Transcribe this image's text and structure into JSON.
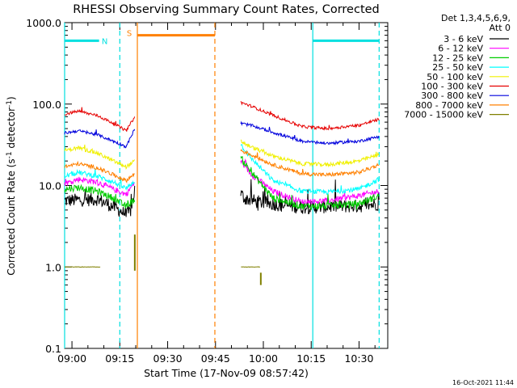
{
  "chart_data": {
    "type": "line",
    "title": "RHESSI Observing Summary Count Rates, Corrected",
    "xlabel": "Start Time (17-Nov-09 08:57:42)",
    "ylabel": "Corrected Count Rate (s⁻¹ detector⁻¹)",
    "ylabel_main": "Corrected Count Rate (s",
    "ylabel_sup1": "-1",
    "ylabel_mid": " detector",
    "ylabel_sup2": "-1",
    "ylabel_end": ")",
    "yscale": "log",
    "ylim": [
      0.1,
      1000
    ],
    "xlim": [
      "08:57:42",
      "10:39:00"
    ],
    "xlim_minutes": [
      537.7,
      639.0
    ],
    "x_ticks": [
      {
        "label": "09:00",
        "minutes": 540
      },
      {
        "label": "09:15",
        "minutes": 555
      },
      {
        "label": "09:30",
        "minutes": 570
      },
      {
        "label": "09:45",
        "minutes": 585
      },
      {
        "label": "10:00",
        "minutes": 600
      },
      {
        "label": "10:15",
        "minutes": 615
      },
      {
        "label": "10:30",
        "minutes": 630
      }
    ],
    "y_ticks": [
      {
        "label": "1000.0",
        "value": 1000
      },
      {
        "label": "100.0",
        "value": 100
      },
      {
        "label": "10.0",
        "value": 10
      },
      {
        "label": "1.0",
        "value": 1
      },
      {
        "label": "0.1",
        "value": 0.1
      }
    ],
    "legend_header": [
      "Det 1,3,4,5,6,9,",
      "Att 0"
    ],
    "legend_placement": "right",
    "series": [
      {
        "name": "3 - 6 keV",
        "color": "#000000",
        "seg1": [
          [
            537.7,
            6.5
          ],
          [
            548,
            6.8
          ],
          [
            553,
            5.5
          ],
          [
            555.5,
            4.8
          ],
          [
            557,
            4.3
          ],
          [
            558.5,
            5.0
          ],
          [
            559.7,
            9.0
          ]
        ],
        "seg2": [
          [
            592.9,
            8.0
          ],
          [
            594,
            7.0
          ],
          [
            598,
            6.3
          ],
          [
            605,
            5.8
          ],
          [
            612,
            5.4
          ],
          [
            620,
            5.5
          ],
          [
            630,
            5.6
          ],
          [
            636.3,
            6.0
          ]
        ],
        "noise": 1.4
      },
      {
        "name": "6 - 12 keV",
        "color": "#ff00ff",
        "seg1": [
          [
            537.7,
            10.5
          ],
          [
            542,
            12.0
          ],
          [
            548,
            11.0
          ],
          [
            553,
            9.0
          ],
          [
            557,
            7.8
          ],
          [
            559.7,
            11.0
          ]
        ],
        "seg2": [
          [
            592.9,
            20.0
          ],
          [
            596,
            14.0
          ],
          [
            603,
            8.5
          ],
          [
            612,
            6.3
          ],
          [
            620,
            6.5
          ],
          [
            630,
            7.5
          ],
          [
            636.3,
            8.5
          ]
        ],
        "noise": 0.6
      },
      {
        "name": "12 - 25 keV",
        "color": "#00cc00",
        "seg1": [
          [
            537.7,
            9.0
          ],
          [
            542,
            9.5
          ],
          [
            548,
            8.5
          ],
          [
            553,
            7.0
          ],
          [
            557,
            5.5
          ],
          [
            559.7,
            6.8
          ]
        ],
        "seg2": [
          [
            592.9,
            22.0
          ],
          [
            596,
            15.0
          ],
          [
            603,
            7.0
          ],
          [
            612,
            5.6
          ],
          [
            620,
            5.6
          ],
          [
            630,
            6.0
          ],
          [
            636.3,
            7.5
          ]
        ],
        "noise": 0.7
      },
      {
        "name": "25 - 50 keV",
        "color": "#00ffff",
        "seg1": [
          [
            537.7,
            13.0
          ],
          [
            542,
            14.5
          ],
          [
            548,
            13.0
          ],
          [
            553,
            11.0
          ],
          [
            557,
            9.2
          ],
          [
            559.7,
            11.5
          ]
        ],
        "seg2": [
          [
            592.9,
            32.0
          ],
          [
            596,
            22.0
          ],
          [
            603,
            11.5
          ],
          [
            612,
            8.5
          ],
          [
            620,
            8.3
          ],
          [
            630,
            9.0
          ],
          [
            636.3,
            12.0
          ]
        ],
        "noise": 0.5
      },
      {
        "name": "50 - 100 keV",
        "color": "#f0f000",
        "seg1": [
          [
            537.7,
            27.0
          ],
          [
            542,
            29.0
          ],
          [
            548,
            25.0
          ],
          [
            553,
            20.0
          ],
          [
            557,
            17.0
          ],
          [
            559.7,
            20.0
          ]
        ],
        "seg2": [
          [
            592.9,
            35.0
          ],
          [
            596,
            30.0
          ],
          [
            603,
            23.0
          ],
          [
            612,
            18.5
          ],
          [
            620,
            18.0
          ],
          [
            630,
            20.0
          ],
          [
            636.3,
            24.0
          ]
        ],
        "noise": 0.4
      },
      {
        "name": "100 - 300 keV",
        "color": "#e60000",
        "seg1": [
          [
            537.7,
            75.0
          ],
          [
            542,
            82.0
          ],
          [
            548,
            72.0
          ],
          [
            553,
            58.0
          ],
          [
            557,
            47.0
          ],
          [
            559.7,
            70.0
          ]
        ],
        "seg2": [
          [
            592.9,
            105.0
          ],
          [
            596,
            95.0
          ],
          [
            603,
            73.0
          ],
          [
            612,
            53.0
          ],
          [
            620,
            50.0
          ],
          [
            630,
            55.0
          ],
          [
            636.3,
            65.0
          ]
        ],
        "noise": 0.3
      },
      {
        "name": "300 - 800 keV",
        "color": "#0000dd",
        "seg1": [
          [
            537.7,
            44.0
          ],
          [
            542,
            47.0
          ],
          [
            548,
            42.0
          ],
          [
            553,
            35.0
          ],
          [
            557,
            30.0
          ],
          [
            559.7,
            50.0
          ]
        ],
        "seg2": [
          [
            592.9,
            58.0
          ],
          [
            596,
            55.0
          ],
          [
            603,
            45.0
          ],
          [
            612,
            35.0
          ],
          [
            620,
            33.0
          ],
          [
            630,
            35.0
          ],
          [
            636.3,
            40.0
          ]
        ],
        "noise": 0.3
      },
      {
        "name": "800 - 7000 keV",
        "color": "#ff8000",
        "seg1": [
          [
            537.7,
            17.0
          ],
          [
            542,
            18.5
          ],
          [
            548,
            16.5
          ],
          [
            553,
            13.5
          ],
          [
            557,
            11.5
          ],
          [
            559.7,
            14.0
          ]
        ],
        "seg2": [
          [
            592.9,
            27.0
          ],
          [
            596,
            24.0
          ],
          [
            603,
            18.0
          ],
          [
            612,
            14.0
          ],
          [
            620,
            13.5
          ],
          [
            630,
            14.5
          ],
          [
            636.3,
            18.0
          ]
        ],
        "noise": 0.4
      },
      {
        "name": "7000 - 15000 keV",
        "color": "#808000",
        "seg1": [
          [
            537.7,
            1.0
          ],
          [
            549,
            1.0
          ]
        ],
        "seg2": [
          [
            593,
            1.0
          ],
          [
            599,
            1.0
          ]
        ],
        "noise": 0.05
      }
    ],
    "annotations": [
      {
        "label": "N",
        "color": "#00e0e0",
        "segments": [
          [
            537.7,
            548.5
          ],
          [
            615.5,
            636.3
          ]
        ],
        "level": 600
      },
      {
        "label": "S",
        "color": "#ff8000",
        "segments": [
          [
            560.5,
            584.8
          ]
        ],
        "level": 700
      }
    ],
    "vertical_markers": [
      {
        "minutes": 537.7,
        "color": "#00e0e0",
        "style": "solid"
      },
      {
        "minutes": 555.0,
        "color": "#00e0e0",
        "style": "dashed"
      },
      {
        "minutes": 560.5,
        "color": "#ff8000",
        "style": "solid"
      },
      {
        "minutes": 584.8,
        "color": "#ff8000",
        "style": "dashed"
      },
      {
        "minutes": 615.5,
        "color": "#00e0e0",
        "style": "solid"
      },
      {
        "minutes": 636.3,
        "color": "#00e0e0",
        "style": "dashed"
      }
    ],
    "extra_marks": [
      {
        "color": "#808000",
        "minutes": 559.7,
        "low": 0.9,
        "high": 2.5
      },
      {
        "color": "#808000",
        "minutes": 599.2,
        "low": 0.6,
        "high": 0.85
      }
    ]
  },
  "footer_timestamp": "16-Oct-2021 11:44"
}
